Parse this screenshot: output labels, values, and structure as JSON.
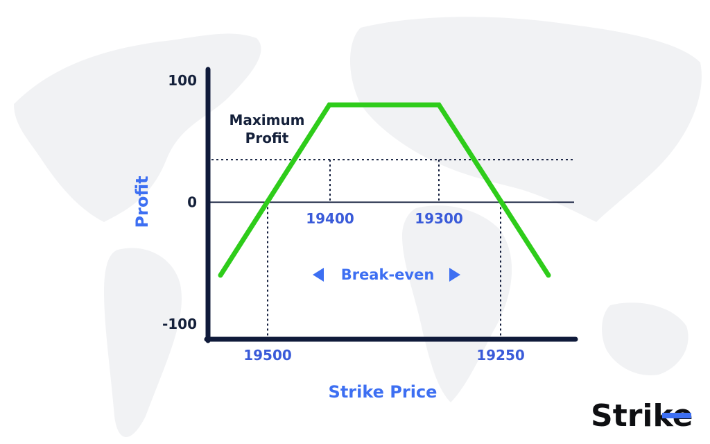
{
  "brand": {
    "logo_text": "Strike",
    "accent": "#3d6ff2"
  },
  "chart_data": {
    "type": "line",
    "xlabel": "Strike Price",
    "ylabel": "Profit",
    "ylim": [
      -100,
      100
    ],
    "y_ticks": [
      "100",
      "0",
      "-100"
    ],
    "series": [
      {
        "color": "#2ecc1a",
        "points": [
          {
            "x": 0.0,
            "y": -60
          },
          {
            "x": 1.0,
            "y": 80
          },
          {
            "x": 2.0,
            "y": 80
          },
          {
            "x": 3.0,
            "y": -60
          }
        ]
      }
    ],
    "x_markers": [
      {
        "label": "19500",
        "y": 0
      },
      {
        "label": "19400",
        "y": 35
      },
      {
        "label": "19300",
        "y": 35
      },
      {
        "label": "19250",
        "y": 0
      }
    ],
    "max_profit_level": 35,
    "annotations": {
      "max_profit_line1": "Maximum",
      "max_profit_line2": "Profit",
      "break_even": "Break-even"
    }
  }
}
